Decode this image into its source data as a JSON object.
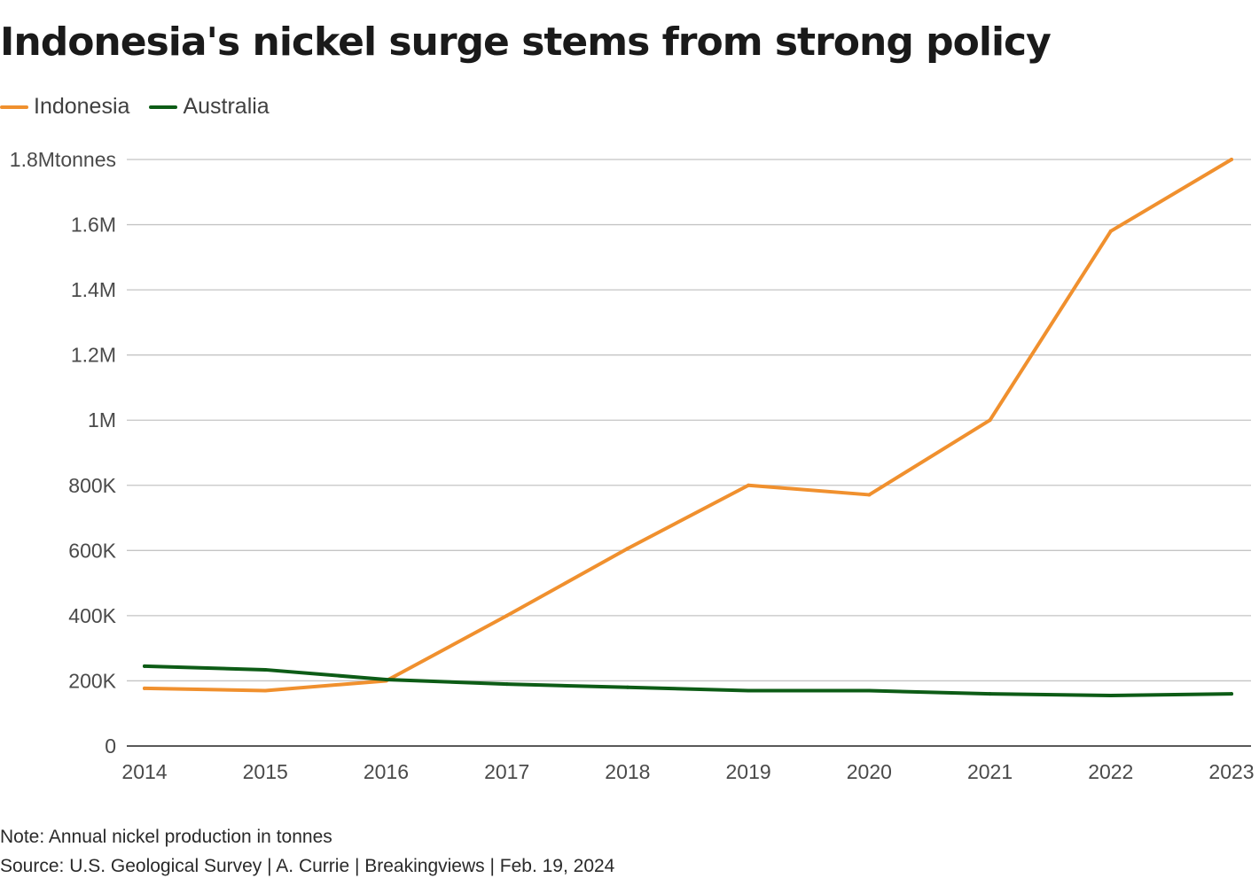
{
  "title": "Indonesia's nickel surge stems from strong policy",
  "note": "Note: Annual nickel production in tonnes",
  "source": "Source: U.S. Geological Survey | A. Currie | Breakingviews | Feb. 19, 2024",
  "colors": {
    "indonesia": "#f0902e",
    "australia": "#0d5c16",
    "grid": "#c4c4c4",
    "axis": "#222222"
  },
  "chart_data": {
    "type": "line",
    "title": "Indonesia's nickel surge stems from strong policy",
    "xlabel": "",
    "ylabel": "",
    "x": [
      2014,
      2015,
      2016,
      2017,
      2018,
      2019,
      2020,
      2021,
      2022,
      2023
    ],
    "x_tick_labels": [
      "2014",
      "2015",
      "2016",
      "2017",
      "2018",
      "2019",
      "2020",
      "2021",
      "2022",
      "2023"
    ],
    "ylim": [
      0,
      1800000
    ],
    "y_ticks": [
      0,
      200000,
      400000,
      600000,
      800000,
      1000000,
      1200000,
      1400000,
      1600000,
      1800000
    ],
    "y_tick_labels": [
      "0",
      "200K",
      "400K",
      "600K",
      "800K",
      "1M",
      "1.2M",
      "1.4M",
      "1.6M",
      "1.8Mtonnes"
    ],
    "grid": true,
    "legend_position": "top-left",
    "series": [
      {
        "name": "Indonesia",
        "color": "#f0902e",
        "values": [
          177000,
          170000,
          200000,
          400000,
          606000,
          800000,
          771000,
          1000000,
          1580000,
          1800000
        ]
      },
      {
        "name": "Australia",
        "color": "#0d5c16",
        "values": [
          245000,
          234000,
          204000,
          190000,
          180000,
          170000,
          170000,
          160000,
          155000,
          160000
        ]
      }
    ]
  }
}
